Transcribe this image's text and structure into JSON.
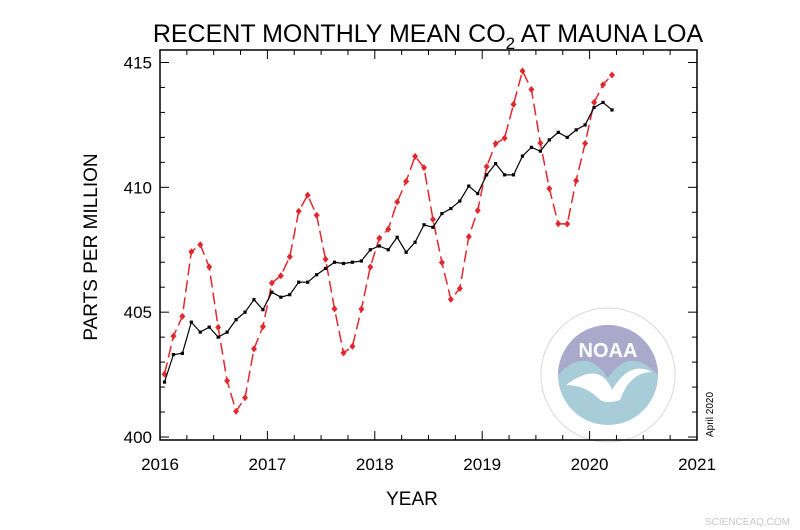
{
  "chart_data": {
    "type": "line",
    "title": "RECENT MONTHLY MEAN CO",
    "title_subscript": "2",
    "title_suffix": " AT MAUNA LOA",
    "xlabel": "YEAR",
    "ylabel": "PARTS PER MILLION",
    "xlim": [
      2016,
      2021
    ],
    "ylim": [
      399.88,
      415.5
    ],
    "xticks": [
      "2016",
      "2017",
      "2018",
      "2019",
      "2020",
      "2021"
    ],
    "yticks": [
      "400",
      "405",
      "410",
      "415"
    ],
    "grid": false,
    "annotation": "April 2020",
    "x_start": "2016-01",
    "series": [
      {
        "style": "red dashed with diamond markers",
        "color": "#e0282e",
        "values": [
          402.52,
          404.04,
          404.83,
          407.42,
          407.7,
          406.81,
          404.39,
          402.25,
          401.03,
          401.57,
          403.53,
          404.42,
          406.17,
          406.46,
          407.22,
          409.04,
          409.69,
          408.88,
          407.12,
          405.13,
          403.37,
          403.63,
          405.12,
          406.81,
          407.96,
          408.32,
          409.41,
          410.24,
          411.24,
          410.79,
          408.71,
          406.99,
          405.51,
          405.95,
          408.02,
          409.07,
          410.83,
          411.75,
          411.97,
          413.32,
          414.66,
          413.92,
          411.77,
          409.95,
          408.54,
          408.53,
          410.27,
          411.76,
          413.4,
          414.11,
          414.5
        ]
      },
      {
        "style": "black solid with square markers",
        "color": "#000000",
        "values": [
          402.2,
          403.3,
          403.35,
          404.6,
          404.2,
          404.4,
          404.0,
          404.2,
          404.7,
          405.0,
          405.5,
          405.1,
          405.8,
          405.6,
          405.7,
          406.2,
          406.2,
          406.5,
          406.75,
          407.0,
          406.95,
          407.0,
          407.05,
          407.5,
          407.65,
          407.5,
          408.0,
          407.4,
          407.8,
          408.5,
          408.4,
          408.95,
          409.15,
          409.45,
          410.05,
          409.75,
          410.5,
          410.95,
          410.5,
          410.5,
          411.25,
          411.6,
          411.45,
          411.9,
          412.2,
          412.0,
          412.3,
          412.5,
          413.2,
          413.4,
          413.1
        ]
      }
    ]
  },
  "logo": {
    "text": "NOAA",
    "ring_text": "NATIONAL OCEANIC AND ATMOSPHERIC ADMINISTRATION · U.S. DEPARTMENT OF COMMERCE"
  },
  "watermark": "SCIENCEAQ.COM"
}
